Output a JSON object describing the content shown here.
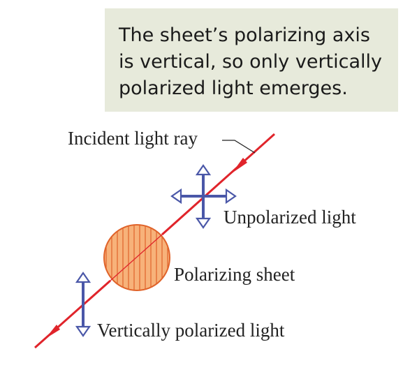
{
  "callout": {
    "lines": [
      "The sheet’s polarizing axis",
      "is vertical, so only vertically",
      "polarized light emerges."
    ]
  },
  "labels": {
    "incident": "Incident light ray",
    "unpolarized": "Unpolarized light",
    "sheet": "Polarizing sheet",
    "vertical": "Vertically polarized light"
  },
  "colors": {
    "ray": "#e0242b",
    "arrows": "#4a57a8",
    "sheet_fill": "#f7b27a",
    "sheet_stroke": "#e0632a",
    "callout_bg": "#e7eadb"
  }
}
